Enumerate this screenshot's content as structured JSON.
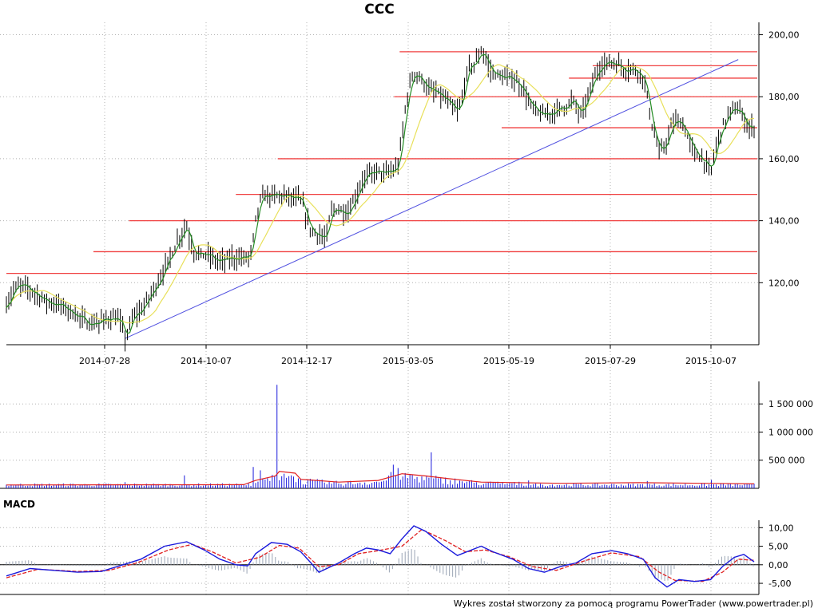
{
  "title": "CCC",
  "macd_label": "MACD",
  "footer": "Wykres został stworzony za pomocą programu PowerTrader (www.powertrader.pl)",
  "colors": {
    "candles": "#000000",
    "ma_short": "#228b22",
    "ma_long": "#e8e05a",
    "support_lines": "#f04040",
    "trend_line": "#5050e0",
    "volume_bars": "#1a1adc",
    "volume_avg": "#e02020",
    "macd_line": "#1a1adc",
    "macd_signal": "#e02020",
    "macd_hist": "#9aa4b4",
    "grid": "#b0b0b0"
  },
  "chart_data": [
    {
      "type": "candlestick",
      "title": "CCC",
      "x_ticks": [
        "2014-07-28",
        "2014-10-07",
        "2014-12-17",
        "2015-03-05",
        "2015-05-19",
        "2015-07-29",
        "2015-10-07"
      ],
      "y_ticks": [
        "120,00",
        "140,00",
        "160,00",
        "180,00",
        "200,00"
      ],
      "ylim": [
        100,
        204
      ],
      "grid": true,
      "close_path": [
        [
          0,
          113
        ],
        [
          10,
          118
        ],
        [
          20,
          119
        ],
        [
          35,
          117
        ],
        [
          50,
          114
        ],
        [
          65,
          113
        ],
        [
          80,
          111
        ],
        [
          92,
          109
        ],
        [
          102,
          107
        ],
        [
          115,
          107
        ],
        [
          125,
          108
        ],
        [
          135,
          109
        ],
        [
          140,
          108
        ],
        [
          145,
          107
        ],
        [
          150,
          102
        ],
        [
          155,
          105
        ],
        [
          160,
          109
        ],
        [
          170,
          111
        ],
        [
          180,
          115
        ],
        [
          195,
          122
        ],
        [
          205,
          127
        ],
        [
          215,
          133
        ],
        [
          222,
          136
        ],
        [
          227,
          139
        ],
        [
          232,
          134
        ],
        [
          237,
          130
        ],
        [
          245,
          129
        ],
        [
          255,
          129
        ],
        [
          265,
          127
        ],
        [
          275,
          127
        ],
        [
          285,
          128
        ],
        [
          295,
          128
        ],
        [
          305,
          128
        ],
        [
          310,
          130
        ],
        [
          315,
          140
        ],
        [
          320,
          146
        ],
        [
          325,
          148
        ],
        [
          335,
          148
        ],
        [
          345,
          148
        ],
        [
          355,
          148
        ],
        [
          362,
          147
        ],
        [
          370,
          147
        ],
        [
          376,
          144
        ],
        [
          380,
          140
        ],
        [
          385,
          137
        ],
        [
          390,
          136
        ],
        [
          395,
          136
        ],
        [
          400,
          134
        ],
        [
          405,
          135
        ],
        [
          410,
          143
        ],
        [
          418,
          144
        ],
        [
          425,
          143
        ],
        [
          432,
          143
        ],
        [
          440,
          147
        ],
        [
          450,
          153
        ],
        [
          460,
          155
        ],
        [
          470,
          156
        ],
        [
          478,
          155
        ],
        [
          485,
          156
        ],
        [
          490,
          156
        ],
        [
          495,
          158
        ],
        [
          500,
          167
        ],
        [
          505,
          178
        ],
        [
          510,
          184
        ],
        [
          515,
          188
        ],
        [
          520,
          187
        ],
        [
          525,
          185
        ],
        [
          530,
          184
        ],
        [
          535,
          182
        ],
        [
          545,
          181
        ],
        [
          555,
          179
        ],
        [
          565,
          176
        ],
        [
          570,
          175
        ],
        [
          575,
          178
        ],
        [
          580,
          185
        ],
        [
          585,
          190
        ],
        [
          590,
          190
        ],
        [
          595,
          192
        ],
        [
          600,
          195
        ],
        [
          605,
          193
        ],
        [
          610,
          189
        ],
        [
          615,
          188
        ],
        [
          620,
          187
        ],
        [
          630,
          186
        ],
        [
          640,
          186
        ],
        [
          648,
          184
        ],
        [
          655,
          182
        ],
        [
          660,
          178
        ],
        [
          670,
          175
        ],
        [
          680,
          174
        ],
        [
          690,
          175
        ],
        [
          700,
          176
        ],
        [
          705,
          177
        ],
        [
          710,
          177
        ],
        [
          715,
          179
        ],
        [
          720,
          177
        ],
        [
          725,
          174
        ],
        [
          730,
          176
        ],
        [
          735,
          180
        ],
        [
          740,
          184
        ],
        [
          745,
          187
        ],
        [
          750,
          190
        ],
        [
          760,
          191
        ],
        [
          770,
          191
        ],
        [
          780,
          189
        ],
        [
          790,
          189
        ],
        [
          800,
          188
        ],
        [
          805,
          186
        ],
        [
          810,
          180
        ],
        [
          815,
          172
        ],
        [
          820,
          167
        ],
        [
          825,
          162
        ],
        [
          830,
          163
        ],
        [
          835,
          166
        ],
        [
          840,
          170
        ],
        [
          845,
          172
        ],
        [
          850,
          172
        ],
        [
          855,
          171
        ],
        [
          860,
          168
        ],
        [
          865,
          164
        ],
        [
          870,
          162
        ],
        [
          875,
          161
        ],
        [
          880,
          160
        ],
        [
          885,
          158
        ],
        [
          890,
          155
        ],
        [
          895,
          162
        ],
        [
          900,
          167
        ],
        [
          905,
          170
        ],
        [
          910,
          173
        ],
        [
          915,
          175
        ],
        [
          920,
          176
        ],
        [
          925,
          176
        ],
        [
          930,
          174
        ],
        [
          935,
          171
        ],
        [
          940,
          170
        ],
        [
          945,
          170
        ]
      ],
      "horizontal_levels": [
        {
          "value": 123,
          "x_from": 0
        },
        {
          "value": 130,
          "x_from": 110
        },
        {
          "value": 140,
          "x_from": 155
        },
        {
          "value": 148.5,
          "x_from": 290
        },
        {
          "value": 160,
          "x_from": 343
        },
        {
          "value": 170,
          "x_from": 626
        },
        {
          "value": 180,
          "x_from": 490
        },
        {
          "value": 186,
          "x_from": 711
        },
        {
          "value": 190,
          "x_from": 741
        },
        {
          "value": 194.5,
          "x_from": 497
        }
      ],
      "trend_line": {
        "from": [
          150,
          102
        ],
        "to": [
          925,
          192
        ]
      }
    },
    {
      "type": "bar",
      "y_ticks": [
        "500 000",
        "1 000 000",
        "1 500 000"
      ],
      "ylim": [
        0,
        1900000
      ],
      "base": 60000,
      "spikes": [
        [
          150,
          110000
        ],
        [
          225,
          230000
        ],
        [
          313,
          380000
        ],
        [
          322,
          320000
        ],
        [
          343,
          1840000
        ],
        [
          350,
          260000
        ],
        [
          360,
          230000
        ],
        [
          485,
          290000
        ],
        [
          490,
          420000
        ],
        [
          495,
          360000
        ],
        [
          500,
          210000
        ],
        [
          510,
          250000
        ],
        [
          538,
          640000
        ],
        [
          545,
          180000
        ],
        [
          660,
          140000
        ],
        [
          810,
          130000
        ],
        [
          890,
          150000
        ]
      ],
      "avg_path": [
        [
          0,
          60000
        ],
        [
          300,
          65000
        ],
        [
          315,
          140000
        ],
        [
          340,
          220000
        ],
        [
          345,
          300000
        ],
        [
          365,
          270000
        ],
        [
          372,
          160000
        ],
        [
          420,
          110000
        ],
        [
          470,
          140000
        ],
        [
          500,
          260000
        ],
        [
          530,
          220000
        ],
        [
          560,
          170000
        ],
        [
          600,
          110000
        ],
        [
          700,
          90000
        ],
        [
          800,
          100000
        ],
        [
          945,
          80000
        ]
      ]
    },
    {
      "type": "line",
      "title": "MACD",
      "y_ticks": [
        "-5,00",
        "0,00",
        "5,00",
        "10,00"
      ],
      "ylim": [
        -8,
        12
      ],
      "macd_path": [
        [
          0,
          -3
        ],
        [
          30,
          -1
        ],
        [
          60,
          -1.5
        ],
        [
          90,
          -2
        ],
        [
          120,
          -1.8
        ],
        [
          140,
          -0.5
        ],
        [
          170,
          1.5
        ],
        [
          200,
          5
        ],
        [
          228,
          6.2
        ],
        [
          250,
          4
        ],
        [
          270,
          1.5
        ],
        [
          290,
          0
        ],
        [
          305,
          -0.3
        ],
        [
          315,
          3
        ],
        [
          335,
          6
        ],
        [
          355,
          5.5
        ],
        [
          372,
          3.5
        ],
        [
          385,
          0.5
        ],
        [
          395,
          -2
        ],
        [
          405,
          -1
        ],
        [
          420,
          0.5
        ],
        [
          440,
          3
        ],
        [
          455,
          4.5
        ],
        [
          470,
          4
        ],
        [
          485,
          3
        ],
        [
          500,
          7
        ],
        [
          515,
          10.5
        ],
        [
          530,
          9
        ],
        [
          550,
          5.5
        ],
        [
          570,
          2.5
        ],
        [
          600,
          5
        ],
        [
          615,
          3.5
        ],
        [
          640,
          1.5
        ],
        [
          660,
          -1
        ],
        [
          680,
          -2
        ],
        [
          700,
          -0.5
        ],
        [
          720,
          0.5
        ],
        [
          740,
          3
        ],
        [
          765,
          3.8
        ],
        [
          785,
          3
        ],
        [
          805,
          1.5
        ],
        [
          820,
          -3.5
        ],
        [
          835,
          -6
        ],
        [
          850,
          -4
        ],
        [
          870,
          -4.5
        ],
        [
          890,
          -4
        ],
        [
          905,
          -0.5
        ],
        [
          920,
          2
        ],
        [
          932,
          2.8
        ],
        [
          945,
          0.8
        ]
      ],
      "signal_path": [
        [
          0,
          -3.5
        ],
        [
          40,
          -1.2
        ],
        [
          90,
          -1.8
        ],
        [
          130,
          -1.5
        ],
        [
          165,
          0.5
        ],
        [
          205,
          4
        ],
        [
          235,
          5.5
        ],
        [
          260,
          3.5
        ],
        [
          290,
          0.5
        ],
        [
          320,
          2
        ],
        [
          345,
          5.2
        ],
        [
          370,
          4.5
        ],
        [
          395,
          -0.5
        ],
        [
          420,
          0
        ],
        [
          445,
          3
        ],
        [
          470,
          3.8
        ],
        [
          500,
          5
        ],
        [
          525,
          9.5
        ],
        [
          555,
          6.5
        ],
        [
          580,
          3.5
        ],
        [
          605,
          4
        ],
        [
          635,
          2.2
        ],
        [
          665,
          -0.5
        ],
        [
          695,
          -1.5
        ],
        [
          730,
          1
        ],
        [
          765,
          3.2
        ],
        [
          800,
          2.2
        ],
        [
          825,
          -2
        ],
        [
          845,
          -4.2
        ],
        [
          880,
          -4.5
        ],
        [
          905,
          -2
        ],
        [
          925,
          1.5
        ],
        [
          945,
          1.2
        ]
      ]
    }
  ]
}
